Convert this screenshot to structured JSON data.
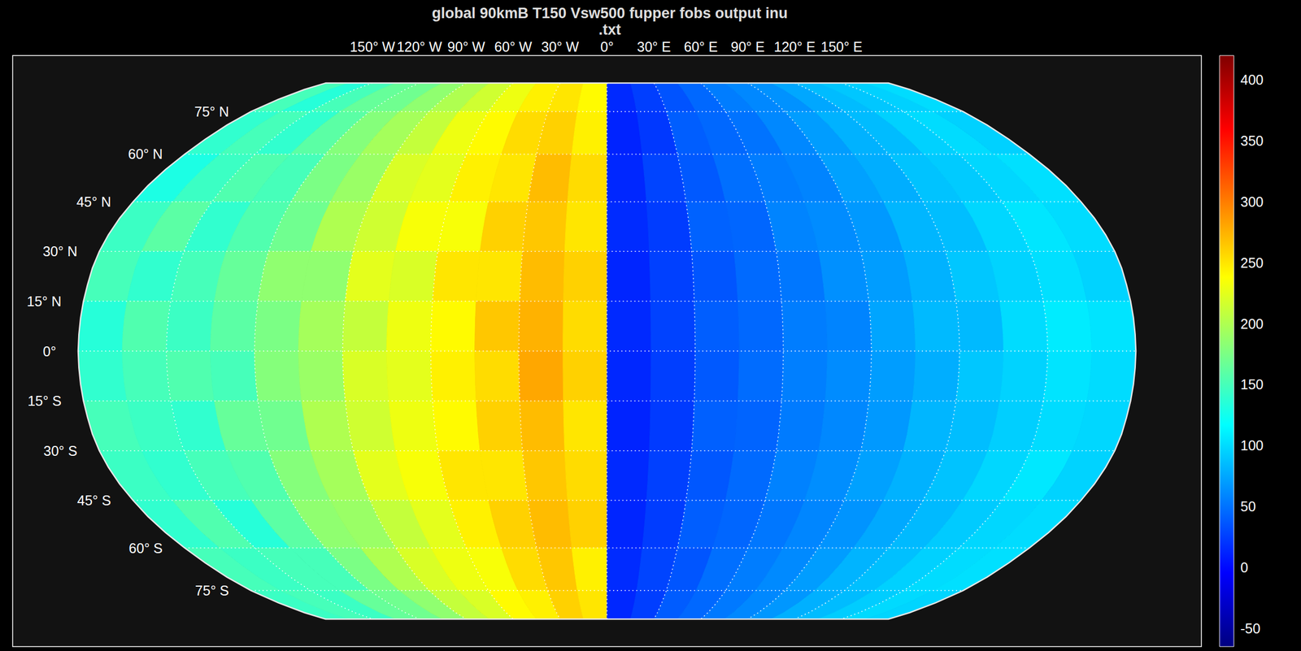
{
  "chart_data": {
    "type": "heatmap",
    "title": "global 90kmB T150 Vsw500 fupper fobs output inu\n.txt",
    "xlim": [
      -180,
      180
    ],
    "ylim": [
      -90,
      90
    ],
    "xticks": [
      {
        "value": -150,
        "label": "150° W"
      },
      {
        "value": -120,
        "label": "120° W"
      },
      {
        "value": -90,
        "label": "90° W"
      },
      {
        "value": -60,
        "label": "60° W"
      },
      {
        "value": -30,
        "label": "30° W"
      },
      {
        "value": 0,
        "label": "0°"
      },
      {
        "value": 30,
        "label": "30° E"
      },
      {
        "value": 60,
        "label": "60° E"
      },
      {
        "value": 90,
        "label": "90° E"
      },
      {
        "value": 120,
        "label": "120° E"
      },
      {
        "value": 150,
        "label": "150° E"
      }
    ],
    "yticks": [
      {
        "value": 75,
        "label": "75° N"
      },
      {
        "value": 60,
        "label": "60° N"
      },
      {
        "value": 45,
        "label": "45° N"
      },
      {
        "value": 30,
        "label": "30° N"
      },
      {
        "value": 15,
        "label": "15° N"
      },
      {
        "value": 0,
        "label": "0°"
      },
      {
        "value": -15,
        "label": "15° S"
      },
      {
        "value": -30,
        "label": "30° S"
      },
      {
        "value": -45,
        "label": "45° S"
      },
      {
        "value": -60,
        "label": "60° S"
      },
      {
        "value": -75,
        "label": "75° S"
      }
    ],
    "grid": true,
    "cells": {
      "x_edges": [
        -180,
        -165,
        -150,
        -135,
        -120,
        -105,
        -90,
        -75,
        -60,
        -45,
        -30,
        -15,
        0,
        15,
        30,
        45,
        60,
        75,
        90,
        105,
        120,
        135,
        150,
        165,
        180
      ],
      "y_edges": [
        90,
        75,
        60,
        45,
        30,
        15,
        0,
        -15,
        -30,
        -45,
        -60,
        -75,
        -90
      ],
      "values": [
        [
          150,
          135,
          150,
          165,
          170,
          185,
          200,
          215,
          230,
          245,
          250,
          240,
          15,
          25,
          35,
          45,
          55,
          60,
          65,
          75,
          85,
          90,
          95,
          100
        ],
        [
          140,
          150,
          140,
          160,
          180,
          195,
          210,
          230,
          240,
          255,
          260,
          245,
          12,
          22,
          40,
          45,
          50,
          60,
          70,
          80,
          85,
          95,
          100,
          95
        ],
        [
          130,
          145,
          155,
          150,
          175,
          190,
          220,
          225,
          245,
          250,
          270,
          255,
          14,
          28,
          38,
          48,
          55,
          58,
          72,
          78,
          88,
          92,
          98,
          102
        ],
        [
          145,
          160,
          140,
          155,
          170,
          200,
          215,
          235,
          235,
          260,
          265,
          250,
          16,
          24,
          42,
          44,
          58,
          62,
          68,
          82,
          86,
          98,
          105,
          100
        ],
        [
          150,
          140,
          150,
          165,
          185,
          185,
          225,
          220,
          250,
          250,
          270,
          260,
          13,
          26,
          36,
          46,
          52,
          64,
          70,
          80,
          90,
          96,
          102,
          96
        ],
        [
          135,
          155,
          145,
          160,
          175,
          195,
          210,
          230,
          240,
          265,
          275,
          255,
          15,
          27,
          40,
          45,
          55,
          58,
          74,
          84,
          84,
          100,
          108,
          104
        ],
        [
          140,
          150,
          155,
          150,
          180,
          190,
          220,
          225,
          245,
          255,
          280,
          260,
          14,
          25,
          38,
          47,
          56,
          62,
          70,
          78,
          90,
          96,
          104,
          100
        ],
        [
          150,
          145,
          140,
          165,
          170,
          200,
          215,
          230,
          240,
          260,
          270,
          250,
          12,
          23,
          41,
          43,
          54,
          60,
          68,
          82,
          86,
          94,
          100,
          98
        ],
        [
          145,
          140,
          150,
          155,
          180,
          195,
          225,
          235,
          250,
          250,
          265,
          255,
          15,
          26,
          37,
          46,
          57,
          63,
          72,
          80,
          88,
          98,
          106,
          96
        ],
        [
          140,
          155,
          135,
          160,
          185,
          190,
          210,
          225,
          245,
          260,
          270,
          260,
          13,
          24,
          40,
          44,
          52,
          59,
          66,
          76,
          84,
          92,
          98,
          100
        ],
        [
          150,
          145,
          150,
          150,
          175,
          200,
          220,
          230,
          235,
          255,
          265,
          245,
          16,
          28,
          36,
          48,
          55,
          61,
          70,
          81,
          87,
          95,
          100,
          102
        ],
        [
          145,
          150,
          145,
          165,
          170,
          185,
          210,
          220,
          240,
          245,
          260,
          250,
          14,
          25,
          39,
          45,
          53,
          60,
          67,
          79,
          85,
          93,
          99,
          97
        ]
      ]
    },
    "colorbar": {
      "range": [
        -65,
        420
      ],
      "ticks": [
        -50,
        0,
        50,
        100,
        150,
        200,
        250,
        300,
        350,
        400
      ]
    }
  }
}
